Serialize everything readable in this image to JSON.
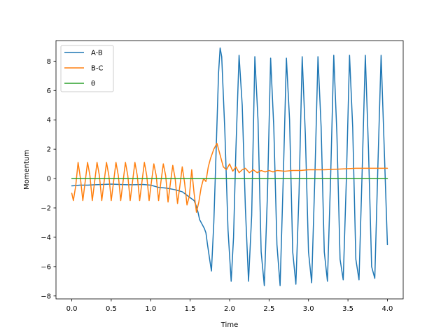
{
  "chart_data": {
    "type": "line",
    "title": "",
    "xlabel": "Time",
    "ylabel": "Momentum",
    "xlim": [
      -0.2,
      4.2
    ],
    "ylim": [
      -8.2,
      9.4
    ],
    "xticks": [
      0.0,
      0.5,
      1.0,
      1.5,
      2.0,
      2.5,
      3.0,
      3.5,
      4.0
    ],
    "xtick_labels": [
      "0.0",
      "0.5",
      "1.0",
      "1.5",
      "2.0",
      "2.5",
      "3.0",
      "3.5",
      "4.0"
    ],
    "yticks": [
      -8,
      -6,
      -4,
      -2,
      0,
      2,
      4,
      6,
      8
    ],
    "ytick_labels": [
      "−8",
      "−6",
      "−4",
      "−2",
      "0",
      "2",
      "4",
      "6",
      "8"
    ],
    "grid": false,
    "legend": "top-left",
    "series": [
      {
        "name": "A-B",
        "color": "#1f77b4",
        "x": [
          0.0,
          0.05,
          0.1,
          0.2,
          0.3,
          0.4,
          0.5,
          0.6,
          0.7,
          0.8,
          0.9,
          1.0,
          1.1,
          1.2,
          1.3,
          1.4,
          1.45,
          1.5,
          1.55,
          1.58,
          1.6,
          1.62,
          1.65,
          1.68,
          1.7,
          1.72,
          1.75,
          1.77,
          1.8,
          1.83,
          1.86,
          1.88,
          1.9,
          1.94,
          1.98,
          2.02,
          2.05,
          2.08,
          2.12,
          2.16,
          2.2,
          2.24,
          2.28,
          2.32,
          2.36,
          2.4,
          2.44,
          2.48,
          2.52,
          2.56,
          2.6,
          2.64,
          2.68,
          2.72,
          2.76,
          2.8,
          2.84,
          2.88,
          2.92,
          2.96,
          3.0,
          3.04,
          3.08,
          3.12,
          3.16,
          3.2,
          3.24,
          3.28,
          3.32,
          3.36,
          3.4,
          3.44,
          3.48,
          3.52,
          3.56,
          3.6,
          3.64,
          3.68,
          3.72,
          3.76,
          3.8,
          3.84,
          3.88,
          3.92,
          3.96,
          4.0
        ],
        "values": [
          -0.5,
          -0.48,
          -0.45,
          -0.45,
          -0.42,
          -0.4,
          -0.38,
          -0.4,
          -0.42,
          -0.42,
          -0.4,
          -0.45,
          -0.6,
          -0.65,
          -0.75,
          -0.9,
          -1.1,
          -1.3,
          -1.5,
          -1.9,
          -2.3,
          -2.8,
          -3.1,
          -3.4,
          -3.7,
          -4.5,
          -5.6,
          -6.3,
          -3.0,
          2.0,
          7.2,
          8.9,
          8.3,
          3.2,
          -3.5,
          -7.0,
          -4.0,
          2.0,
          8.4,
          5.0,
          -2.0,
          -7.0,
          -2.5,
          8.3,
          4.0,
          -5.0,
          -7.3,
          -1.0,
          8.2,
          3.5,
          -4.5,
          -7.3,
          0.0,
          8.2,
          4.0,
          -5.0,
          -7.2,
          -1.0,
          8.3,
          3.0,
          -5.0,
          -7.1,
          0.0,
          8.3,
          3.5,
          -5.0,
          -7.0,
          0.0,
          8.4,
          3.0,
          -5.5,
          -6.9,
          0.0,
          8.4,
          3.5,
          -5.5,
          -6.9,
          0.5,
          8.4,
          2.0,
          -6.0,
          -6.8,
          1.0,
          8.4,
          2.0,
          -4.5
        ]
      },
      {
        "name": "B-C",
        "color": "#ff7f0e",
        "x": [
          0.0,
          0.02,
          0.05,
          0.08,
          0.11,
          0.14,
          0.17,
          0.2,
          0.23,
          0.26,
          0.29,
          0.32,
          0.35,
          0.38,
          0.41,
          0.44,
          0.47,
          0.5,
          0.53,
          0.56,
          0.59,
          0.62,
          0.65,
          0.68,
          0.71,
          0.74,
          0.77,
          0.8,
          0.83,
          0.86,
          0.89,
          0.92,
          0.95,
          0.98,
          1.01,
          1.04,
          1.07,
          1.1,
          1.13,
          1.16,
          1.19,
          1.22,
          1.25,
          1.28,
          1.31,
          1.34,
          1.37,
          1.4,
          1.43,
          1.46,
          1.49,
          1.52,
          1.55,
          1.58,
          1.61,
          1.64,
          1.67,
          1.7,
          1.73,
          1.76,
          1.8,
          1.84,
          1.88,
          1.92,
          1.96,
          2.0,
          2.04,
          2.08,
          2.12,
          2.16,
          2.2,
          2.25,
          2.3,
          2.35,
          2.4,
          2.45,
          2.5,
          2.55,
          2.6,
          2.7,
          2.8,
          2.9,
          3.0,
          3.2,
          3.4,
          3.6,
          3.8,
          4.0
        ],
        "values": [
          -1.0,
          -1.5,
          -0.5,
          1.1,
          0.0,
          -1.5,
          -0.2,
          1.1,
          0.2,
          -1.5,
          -0.2,
          1.1,
          0.2,
          -1.5,
          -0.2,
          1.1,
          0.2,
          -1.5,
          -0.2,
          1.1,
          0.2,
          -1.5,
          -0.2,
          1.1,
          0.2,
          -1.5,
          -0.2,
          1.1,
          0.2,
          -1.5,
          -0.2,
          1.1,
          0.2,
          -1.5,
          -0.2,
          1.0,
          0.2,
          -1.5,
          -0.2,
          1.0,
          0.2,
          -1.6,
          -0.3,
          0.9,
          0.0,
          -1.7,
          -0.5,
          0.8,
          -0.3,
          -1.8,
          -1.2,
          0.6,
          -1.0,
          -2.3,
          -1.6,
          -0.6,
          0.0,
          -0.2,
          0.8,
          1.4,
          2.0,
          2.4,
          1.6,
          0.8,
          0.6,
          1.0,
          0.5,
          0.8,
          0.4,
          0.6,
          0.7,
          0.4,
          0.6,
          0.4,
          0.55,
          0.45,
          0.55,
          0.45,
          0.55,
          0.5,
          0.55,
          0.55,
          0.6,
          0.6,
          0.65,
          0.7,
          0.7,
          0.7
        ]
      },
      {
        "name": "θ",
        "color": "#2ca02c",
        "x": [
          0.0,
          4.0
        ],
        "values": [
          0.0,
          0.0
        ]
      }
    ]
  }
}
